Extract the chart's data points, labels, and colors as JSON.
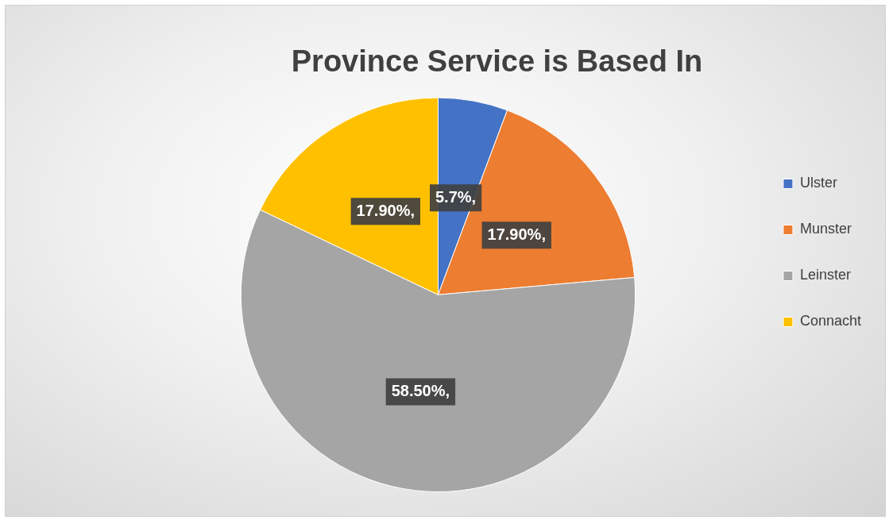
{
  "chart_data": {
    "type": "pie",
    "title": "Province Service is Based In",
    "categories": [
      "Ulster",
      "Munster",
      "Leinster",
      "Connacht"
    ],
    "values": [
      5.7,
      17.9,
      58.5,
      17.9
    ],
    "colors": [
      "#4472c4",
      "#ed7d31",
      "#a5a5a5",
      "#ffc000"
    ],
    "value_labels": [
      "5.7%,",
      "17.90%,",
      "58.50%,",
      "17.90%,"
    ],
    "legend": "right"
  }
}
